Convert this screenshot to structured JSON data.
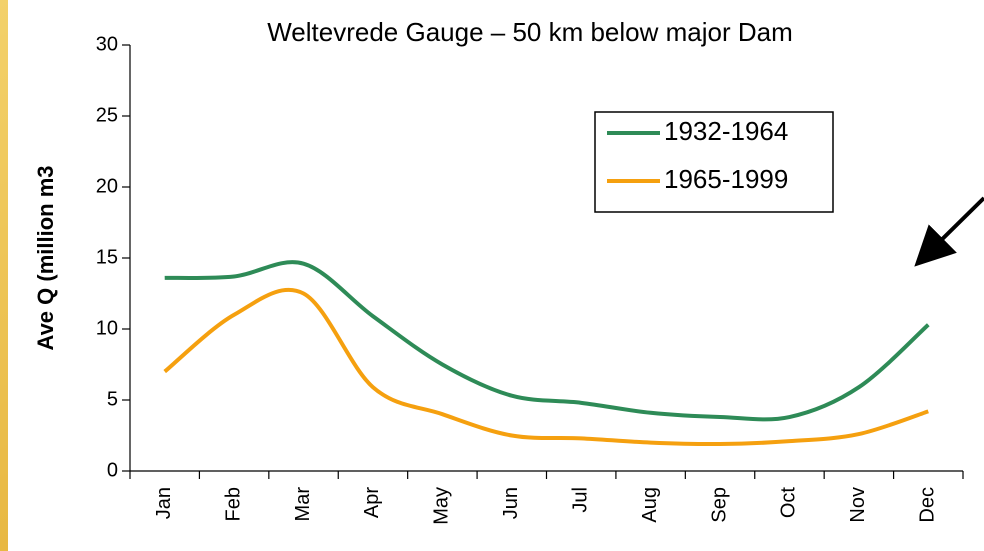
{
  "chart_data": {
    "type": "line",
    "title": "Weltevrede Gauge – 50 km below major Dam",
    "y_label": "Ave Q (million m3",
    "categories": [
      "Jan",
      "Feb",
      "Mar",
      "Apr",
      "May",
      "Jun",
      "Jul",
      "Aug",
      "Sep",
      "Oct",
      "Nov",
      "Dec"
    ],
    "series": [
      {
        "name": "1932-1964",
        "color": "#2e8b57",
        "values": [
          13.6,
          13.7,
          14.6,
          10.9,
          7.5,
          5.3,
          4.8,
          4.1,
          3.8,
          3.8,
          5.9,
          10.3
        ]
      },
      {
        "name": "1965-1999",
        "color": "#f5a00f",
        "values": [
          7.0,
          11.0,
          12.5,
          5.9,
          4.0,
          2.5,
          2.3,
          2.0,
          1.9,
          2.1,
          2.6,
          4.2
        ]
      }
    ],
    "ylim": [
      0,
      30
    ],
    "yticks": [
      0,
      5,
      10,
      15,
      20,
      25,
      30
    ],
    "legend": "upper-right"
  }
}
